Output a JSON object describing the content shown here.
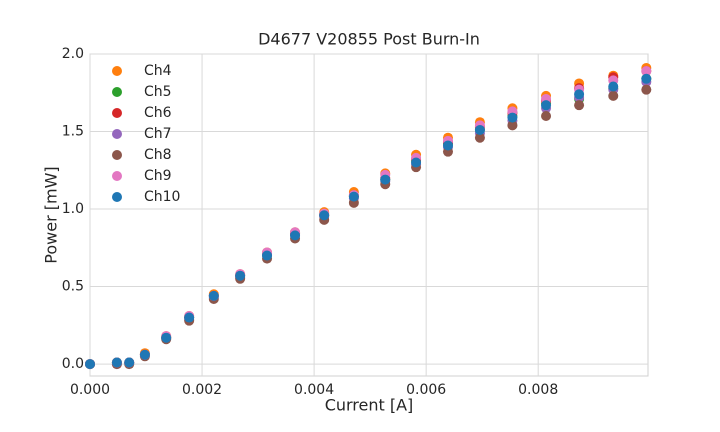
{
  "chart_data": {
    "type": "scatter",
    "title": "D4677 V20855 Post Burn-In",
    "x_label": "Current [A]",
    "y_label": "Power [mW]",
    "x": [
      0,
      0.00048,
      0.0007,
      0.00098,
      0.00136,
      0.00177,
      0.00221,
      0.00268,
      0.00316,
      0.00366,
      0.00418,
      0.00471,
      0.00527,
      0.00582,
      0.00639,
      0.00696,
      0.00754,
      0.00814,
      0.00873,
      0.00934,
      0.00993
    ],
    "series": [
      {
        "name": "Ch4",
        "color": "#ff7f0e",
        "values": [
          0,
          0.01,
          0.01,
          0.07,
          0.18,
          0.31,
          0.45,
          0.58,
          0.72,
          0.85,
          0.98,
          1.11,
          1.23,
          1.35,
          1.46,
          1.56,
          1.65,
          1.73,
          1.81,
          1.86,
          1.91
        ]
      },
      {
        "name": "Ch5",
        "color": "#2ca02c",
        "values": [
          0,
          0.01,
          0.01,
          0.06,
          0.17,
          0.3,
          0.44,
          0.57,
          0.7,
          0.84,
          0.96,
          1.08,
          1.19,
          1.31,
          1.42,
          1.51,
          1.6,
          1.68,
          1.71,
          1.78,
          1.84
        ]
      },
      {
        "name": "Ch6",
        "color": "#d62728",
        "values": [
          0,
          0.01,
          0.01,
          0.06,
          0.17,
          0.3,
          0.44,
          0.57,
          0.71,
          0.84,
          0.96,
          1.09,
          1.2,
          1.32,
          1.43,
          1.53,
          1.62,
          1.7,
          1.78,
          1.85,
          1.89
        ]
      },
      {
        "name": "Ch7",
        "color": "#9467bd",
        "values": [
          0,
          0,
          0.01,
          0.06,
          0.17,
          0.29,
          0.43,
          0.56,
          0.7,
          0.83,
          0.95,
          1.07,
          1.18,
          1.29,
          1.4,
          1.49,
          1.57,
          1.65,
          1.72,
          1.77,
          1.82
        ]
      },
      {
        "name": "Ch8",
        "color": "#8c564b",
        "values": [
          0,
          0,
          0,
          0.05,
          0.16,
          0.28,
          0.42,
          0.55,
          0.68,
          0.81,
          0.93,
          1.04,
          1.16,
          1.27,
          1.37,
          1.46,
          1.54,
          1.6,
          1.67,
          1.73,
          1.77
        ]
      },
      {
        "name": "Ch9",
        "color": "#e377c2",
        "values": [
          0,
          0.01,
          0.01,
          0.06,
          0.18,
          0.31,
          0.44,
          0.58,
          0.72,
          0.85,
          0.97,
          1.09,
          1.22,
          1.33,
          1.44,
          1.54,
          1.63,
          1.71,
          1.77,
          1.83,
          1.89
        ]
      },
      {
        "name": "Ch10",
        "color": "#1f77b4",
        "values": [
          0,
          0.01,
          0.01,
          0.06,
          0.17,
          0.3,
          0.44,
          0.57,
          0.7,
          0.83,
          0.96,
          1.08,
          1.19,
          1.3,
          1.41,
          1.51,
          1.59,
          1.67,
          1.74,
          1.79,
          1.84
        ]
      }
    ],
    "xlim": [
      0,
      0.00996
    ],
    "ylim": [
      -0.077,
      2.0
    ],
    "xticks": [
      {
        "value": 0,
        "label": "0.000"
      },
      {
        "value": 0.002,
        "label": "0.002"
      },
      {
        "value": 0.004,
        "label": "0.004"
      },
      {
        "value": 0.006,
        "label": "0.006"
      },
      {
        "value": 0.008,
        "label": "0.008"
      }
    ],
    "yticks": [
      {
        "value": 0,
        "label": "0.0"
      },
      {
        "value": 0.5,
        "label": "0.5"
      },
      {
        "value": 1,
        "label": "1.0"
      },
      {
        "value": 1.5,
        "label": "1.5"
      },
      {
        "value": 2,
        "label": "2.0"
      }
    ],
    "grid": true,
    "legend": "upper-left"
  }
}
